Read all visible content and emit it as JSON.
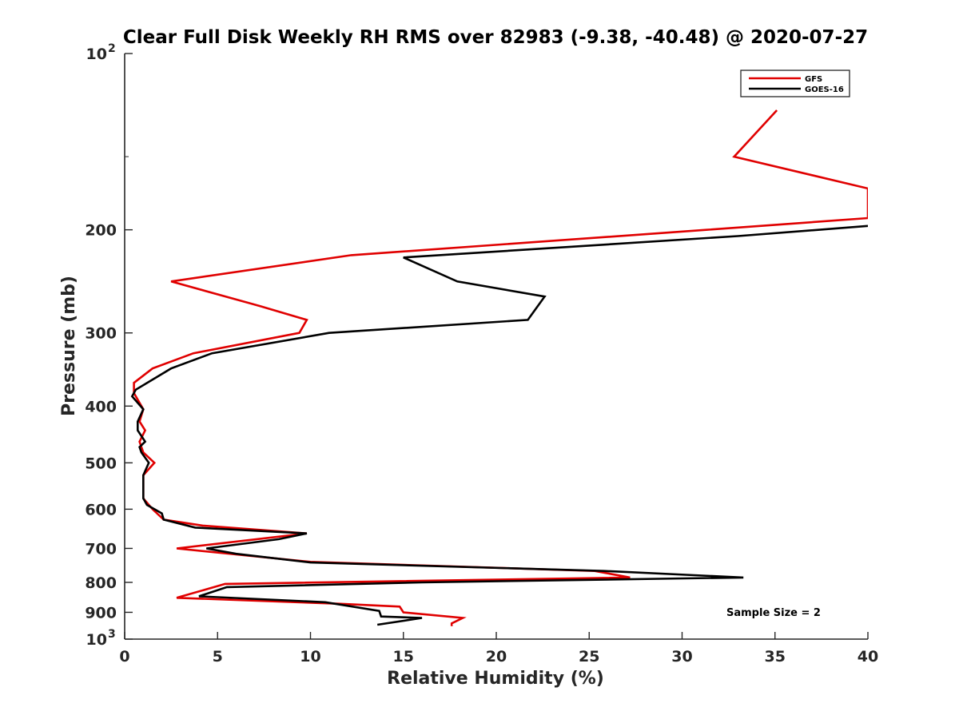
{
  "chart_data": {
    "type": "line",
    "title": "Clear Full Disk Weekly RH RMS over 82983 (-9.38, -40.48) @ 2020-07-27",
    "xlabel": "Relative Humidity (%)",
    "ylabel": "Pressure (mb)",
    "xlim": [
      0,
      40
    ],
    "ylim": [
      100,
      1000
    ],
    "yscale": "log",
    "yreversed": true,
    "grid": false,
    "legend_position": "top-right",
    "annotation": "Sample Size = 2",
    "x_ticks": [
      {
        "value": 0,
        "label": "0"
      },
      {
        "value": 5,
        "label": "5"
      },
      {
        "value": 10,
        "label": "10"
      },
      {
        "value": 15,
        "label": "15"
      },
      {
        "value": 20,
        "label": "20"
      },
      {
        "value": 25,
        "label": "25"
      },
      {
        "value": 30,
        "label": "30"
      },
      {
        "value": 35,
        "label": "35"
      },
      {
        "value": 40,
        "label": "40"
      }
    ],
    "y_ticks": [
      {
        "value": 100,
        "base": "10",
        "exp": "2"
      },
      {
        "value": 200,
        "label": "200"
      },
      {
        "value": 300,
        "label": "300"
      },
      {
        "value": 400,
        "label": "400"
      },
      {
        "value": 500,
        "label": "500"
      },
      {
        "value": 600,
        "label": "600"
      },
      {
        "value": 700,
        "label": "700"
      },
      {
        "value": 800,
        "label": "800"
      },
      {
        "value": 900,
        "label": "900"
      },
      {
        "value": 1000,
        "base": "10",
        "exp": "3"
      }
    ],
    "series": [
      {
        "name": "GFS",
        "color": "#e00000",
        "points": [
          [
            35.1,
            125
          ],
          [
            32.8,
            150
          ],
          [
            40,
            170
          ],
          [
            40,
            191
          ],
          [
            31.3,
            200
          ],
          [
            12.2,
            221
          ],
          [
            2.5,
            245
          ],
          [
            7.3,
            270
          ],
          [
            9.8,
            285
          ],
          [
            9.4,
            300
          ],
          [
            3.7,
            325
          ],
          [
            1.5,
            345
          ],
          [
            0.5,
            365
          ],
          [
            0.5,
            380
          ],
          [
            1.0,
            405
          ],
          [
            0.8,
            425
          ],
          [
            1.1,
            440
          ],
          [
            0.8,
            460
          ],
          [
            1.0,
            480
          ],
          [
            1.6,
            500
          ],
          [
            1.0,
            525
          ],
          [
            1.0,
            550
          ],
          [
            1.0,
            575
          ],
          [
            1.5,
            600
          ],
          [
            2.1,
            625
          ],
          [
            4.2,
            640
          ],
          [
            9.8,
            660
          ],
          [
            2.8,
            700
          ],
          [
            10.0,
            738
          ],
          [
            25.3,
            765
          ],
          [
            27.2,
            785
          ],
          [
            5.4,
            805
          ],
          [
            2.8,
            850
          ],
          [
            11.5,
            870
          ],
          [
            14.8,
            880
          ],
          [
            15.0,
            900
          ],
          [
            18.2,
            920
          ],
          [
            17.6,
            940
          ],
          [
            17.6,
            950
          ]
        ]
      },
      {
        "name": "GOES-16",
        "color": "#000000",
        "points": [
          [
            40,
            197
          ],
          [
            33.0,
            205
          ],
          [
            15.0,
            223
          ],
          [
            17.9,
            245
          ],
          [
            22.6,
            260
          ],
          [
            21.7,
            285
          ],
          [
            11.0,
            300
          ],
          [
            4.7,
            325
          ],
          [
            2.5,
            345
          ],
          [
            0.6,
            375
          ],
          [
            0.4,
            385
          ],
          [
            1.0,
            405
          ],
          [
            0.7,
            425
          ],
          [
            0.7,
            440
          ],
          [
            1.1,
            460
          ],
          [
            0.8,
            470
          ],
          [
            0.9,
            480
          ],
          [
            1.3,
            500
          ],
          [
            1.0,
            525
          ],
          [
            1.0,
            550
          ],
          [
            1.0,
            575
          ],
          [
            1.2,
            590
          ],
          [
            2.0,
            610
          ],
          [
            2.1,
            625
          ],
          [
            3.8,
            645
          ],
          [
            9.8,
            660
          ],
          [
            8.3,
            675
          ],
          [
            4.4,
            700
          ],
          [
            6.0,
            715
          ],
          [
            10.0,
            740
          ],
          [
            25.8,
            765
          ],
          [
            33.3,
            785
          ],
          [
            16.0,
            800
          ],
          [
            5.5,
            815
          ],
          [
            4.0,
            845
          ],
          [
            10.8,
            865
          ],
          [
            13.7,
            895
          ],
          [
            13.8,
            915
          ],
          [
            16.0,
            920
          ],
          [
            13.6,
            945
          ]
        ]
      }
    ]
  }
}
